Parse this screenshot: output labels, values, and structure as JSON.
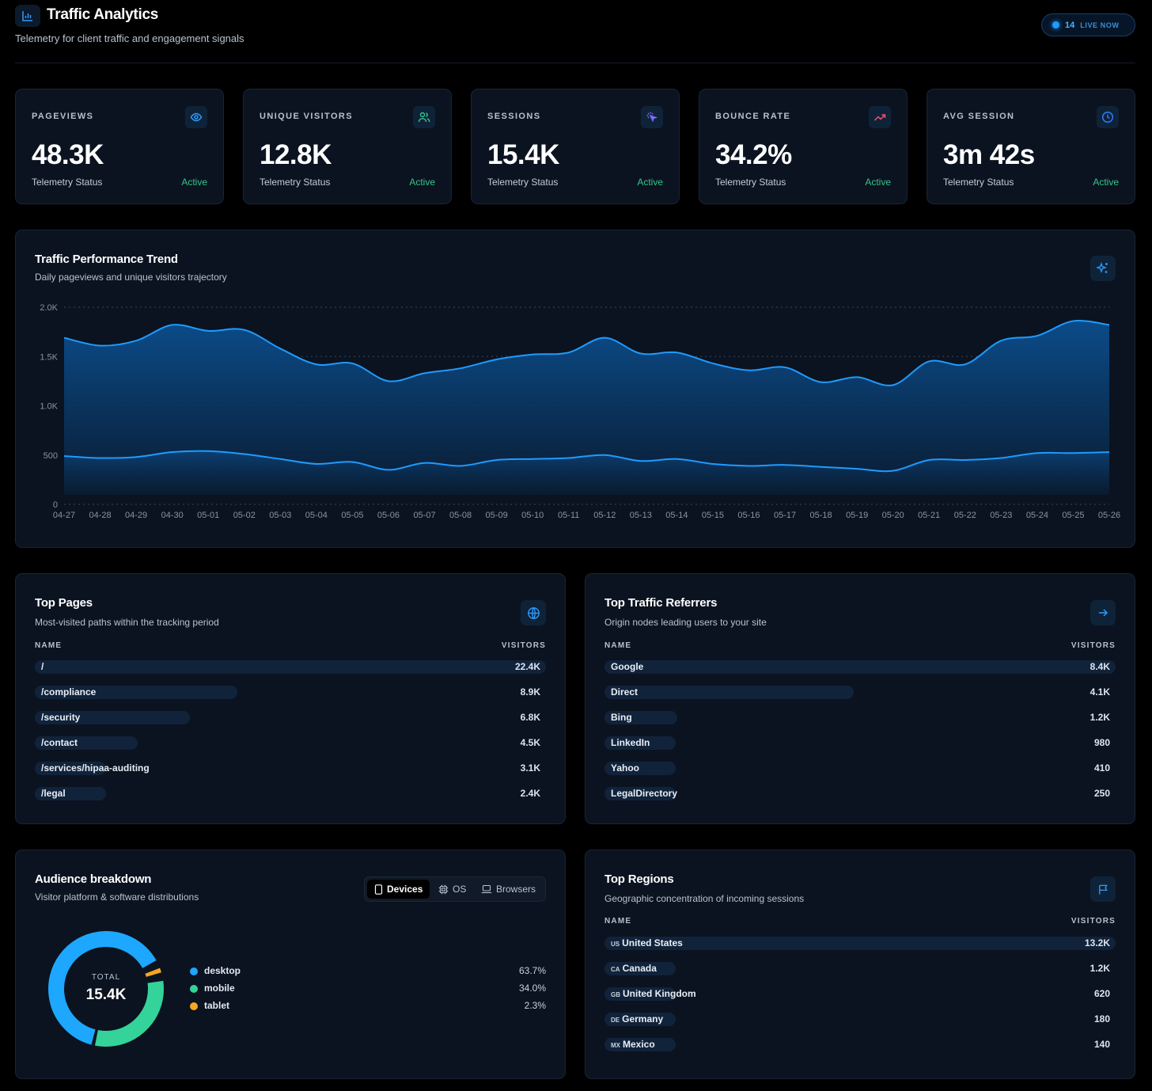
{
  "header": {
    "title": "Traffic Analytics",
    "subtitle": "Telemetry for client traffic and engagement signals",
    "live_count": "14",
    "live_label": "LIVE NOW"
  },
  "kpis": [
    {
      "label": "PAGEVIEWS",
      "value": "48.3K",
      "status": "Telemetry Status",
      "badge": "Active",
      "icon": "eye-icon",
      "icon_color": "#2f9bff"
    },
    {
      "label": "UNIQUE VISITORS",
      "value": "12.8K",
      "status": "Telemetry Status",
      "badge": "Active",
      "icon": "users-icon",
      "icon_color": "#34c58a"
    },
    {
      "label": "SESSIONS",
      "value": "15.4K",
      "status": "Telemetry Status",
      "badge": "Active",
      "icon": "cursor-click-icon",
      "icon_color": "#7c6cff"
    },
    {
      "label": "BOUNCE RATE",
      "value": "34.2%",
      "status": "Telemetry Status",
      "badge": "Active",
      "icon": "trending-up-icon",
      "icon_color": "#ff4d6d"
    },
    {
      "label": "AVG SESSION",
      "value": "3m 42s",
      "status": "Telemetry Status",
      "badge": "Active",
      "icon": "clock-icon",
      "icon_color": "#2f7bff"
    }
  ],
  "trend": {
    "title": "Traffic Performance Trend",
    "subtitle": "Daily pageviews and unique visitors trajectory",
    "icon": "sparkles-icon"
  },
  "chart_data": {
    "type": "area",
    "x": [
      "04-27",
      "04-28",
      "04-29",
      "04-30",
      "05-01",
      "05-02",
      "05-03",
      "05-04",
      "05-05",
      "05-06",
      "05-07",
      "05-08",
      "05-09",
      "05-10",
      "05-11",
      "05-12",
      "05-13",
      "05-14",
      "05-15",
      "05-16",
      "05-17",
      "05-18",
      "05-19",
      "05-20",
      "05-21",
      "05-22",
      "05-23",
      "05-24",
      "05-25",
      "05-26"
    ],
    "series": [
      {
        "values": [
          1690,
          1610,
          1660,
          1820,
          1760,
          1770,
          1580,
          1420,
          1430,
          1250,
          1330,
          1380,
          1470,
          1520,
          1540,
          1690,
          1530,
          1540,
          1430,
          1360,
          1390,
          1240,
          1290,
          1210,
          1450,
          1420,
          1660,
          1710,
          1860,
          1820
        ],
        "color": "#1e9bff"
      },
      {
        "values": [
          490,
          470,
          480,
          530,
          540,
          510,
          460,
          410,
          430,
          350,
          420,
          390,
          450,
          460,
          470,
          500,
          440,
          460,
          410,
          390,
          400,
          380,
          360,
          340,
          450,
          450,
          470,
          520,
          520,
          530
        ],
        "color": "#1e9bff"
      }
    ],
    "y_ticks": [
      "0",
      "500",
      "1.0K",
      "1.5K",
      "2.0K"
    ],
    "ylim": [
      0,
      2000
    ],
    "grid": true
  },
  "top_pages": {
    "title": "Top Pages",
    "subtitle": "Most-visited paths within the tracking period",
    "icon": "globe-icon",
    "col_name": "NAME",
    "col_value": "VISITORS",
    "rows": [
      {
        "name": "/",
        "value": "22.4K",
        "fraction": 1.0
      },
      {
        "name": "/compliance",
        "value": "8.9K",
        "fraction": 0.397
      },
      {
        "name": "/security",
        "value": "6.8K",
        "fraction": 0.304
      },
      {
        "name": "/contact",
        "value": "4.5K",
        "fraction": 0.201
      },
      {
        "name": "/services/hipaa-auditing",
        "value": "3.1K",
        "fraction": 0.138
      },
      {
        "name": "/legal",
        "value": "2.4K",
        "fraction": 0.107
      }
    ]
  },
  "referrers": {
    "title": "Top Traffic Referrers",
    "subtitle": "Origin nodes leading users to your site",
    "icon": "arrow-right-icon",
    "col_name": "NAME",
    "col_value": "VISITORS",
    "rows": [
      {
        "name": "Google",
        "value": "8.4K",
        "fraction": 1.0
      },
      {
        "name": "Direct",
        "value": "4.1K",
        "fraction": 0.488
      },
      {
        "name": "Bing",
        "value": "1.2K",
        "fraction": 0.143
      },
      {
        "name": "LinkedIn",
        "value": "980",
        "fraction": 0.117
      },
      {
        "name": "Yahoo",
        "value": "410",
        "fraction": 0.049
      },
      {
        "name": "LegalDirectory",
        "value": "250",
        "fraction": 0.03
      }
    ]
  },
  "audience": {
    "title": "Audience breakdown",
    "subtitle": "Visitor platform & software distributions",
    "tabs": [
      {
        "label": "Devices",
        "icon": "smartphone-icon",
        "active": true
      },
      {
        "label": "OS",
        "icon": "cpu-icon",
        "active": false
      },
      {
        "label": "Browsers",
        "icon": "laptop-icon",
        "active": false
      }
    ],
    "total_label": "TOTAL",
    "total_value": "15.4K",
    "segments": [
      {
        "name": "desktop",
        "pct": "63.7%",
        "value": 63.7,
        "color": "#1ea7ff"
      },
      {
        "name": "mobile",
        "pct": "34.0%",
        "value": 34.0,
        "color": "#34d399"
      },
      {
        "name": "tablet",
        "pct": "2.3%",
        "value": 2.3,
        "color": "#f5a524"
      }
    ]
  },
  "regions": {
    "title": "Top Regions",
    "subtitle": "Geographic concentration of incoming sessions",
    "icon": "flag-icon",
    "col_name": "NAME",
    "col_value": "VISITORS",
    "rows": [
      {
        "code": "US",
        "name": "United States",
        "value": "13.2K",
        "fraction": 1.0
      },
      {
        "code": "CA",
        "name": "Canada",
        "value": "1.2K",
        "fraction": 0.091
      },
      {
        "code": "GB",
        "name": "United Kingdom",
        "value": "620",
        "fraction": 0.047
      },
      {
        "code": "DE",
        "name": "Germany",
        "value": "180",
        "fraction": 0.014
      },
      {
        "code": "MX",
        "name": "Mexico",
        "value": "140",
        "fraction": 0.011
      }
    ]
  }
}
